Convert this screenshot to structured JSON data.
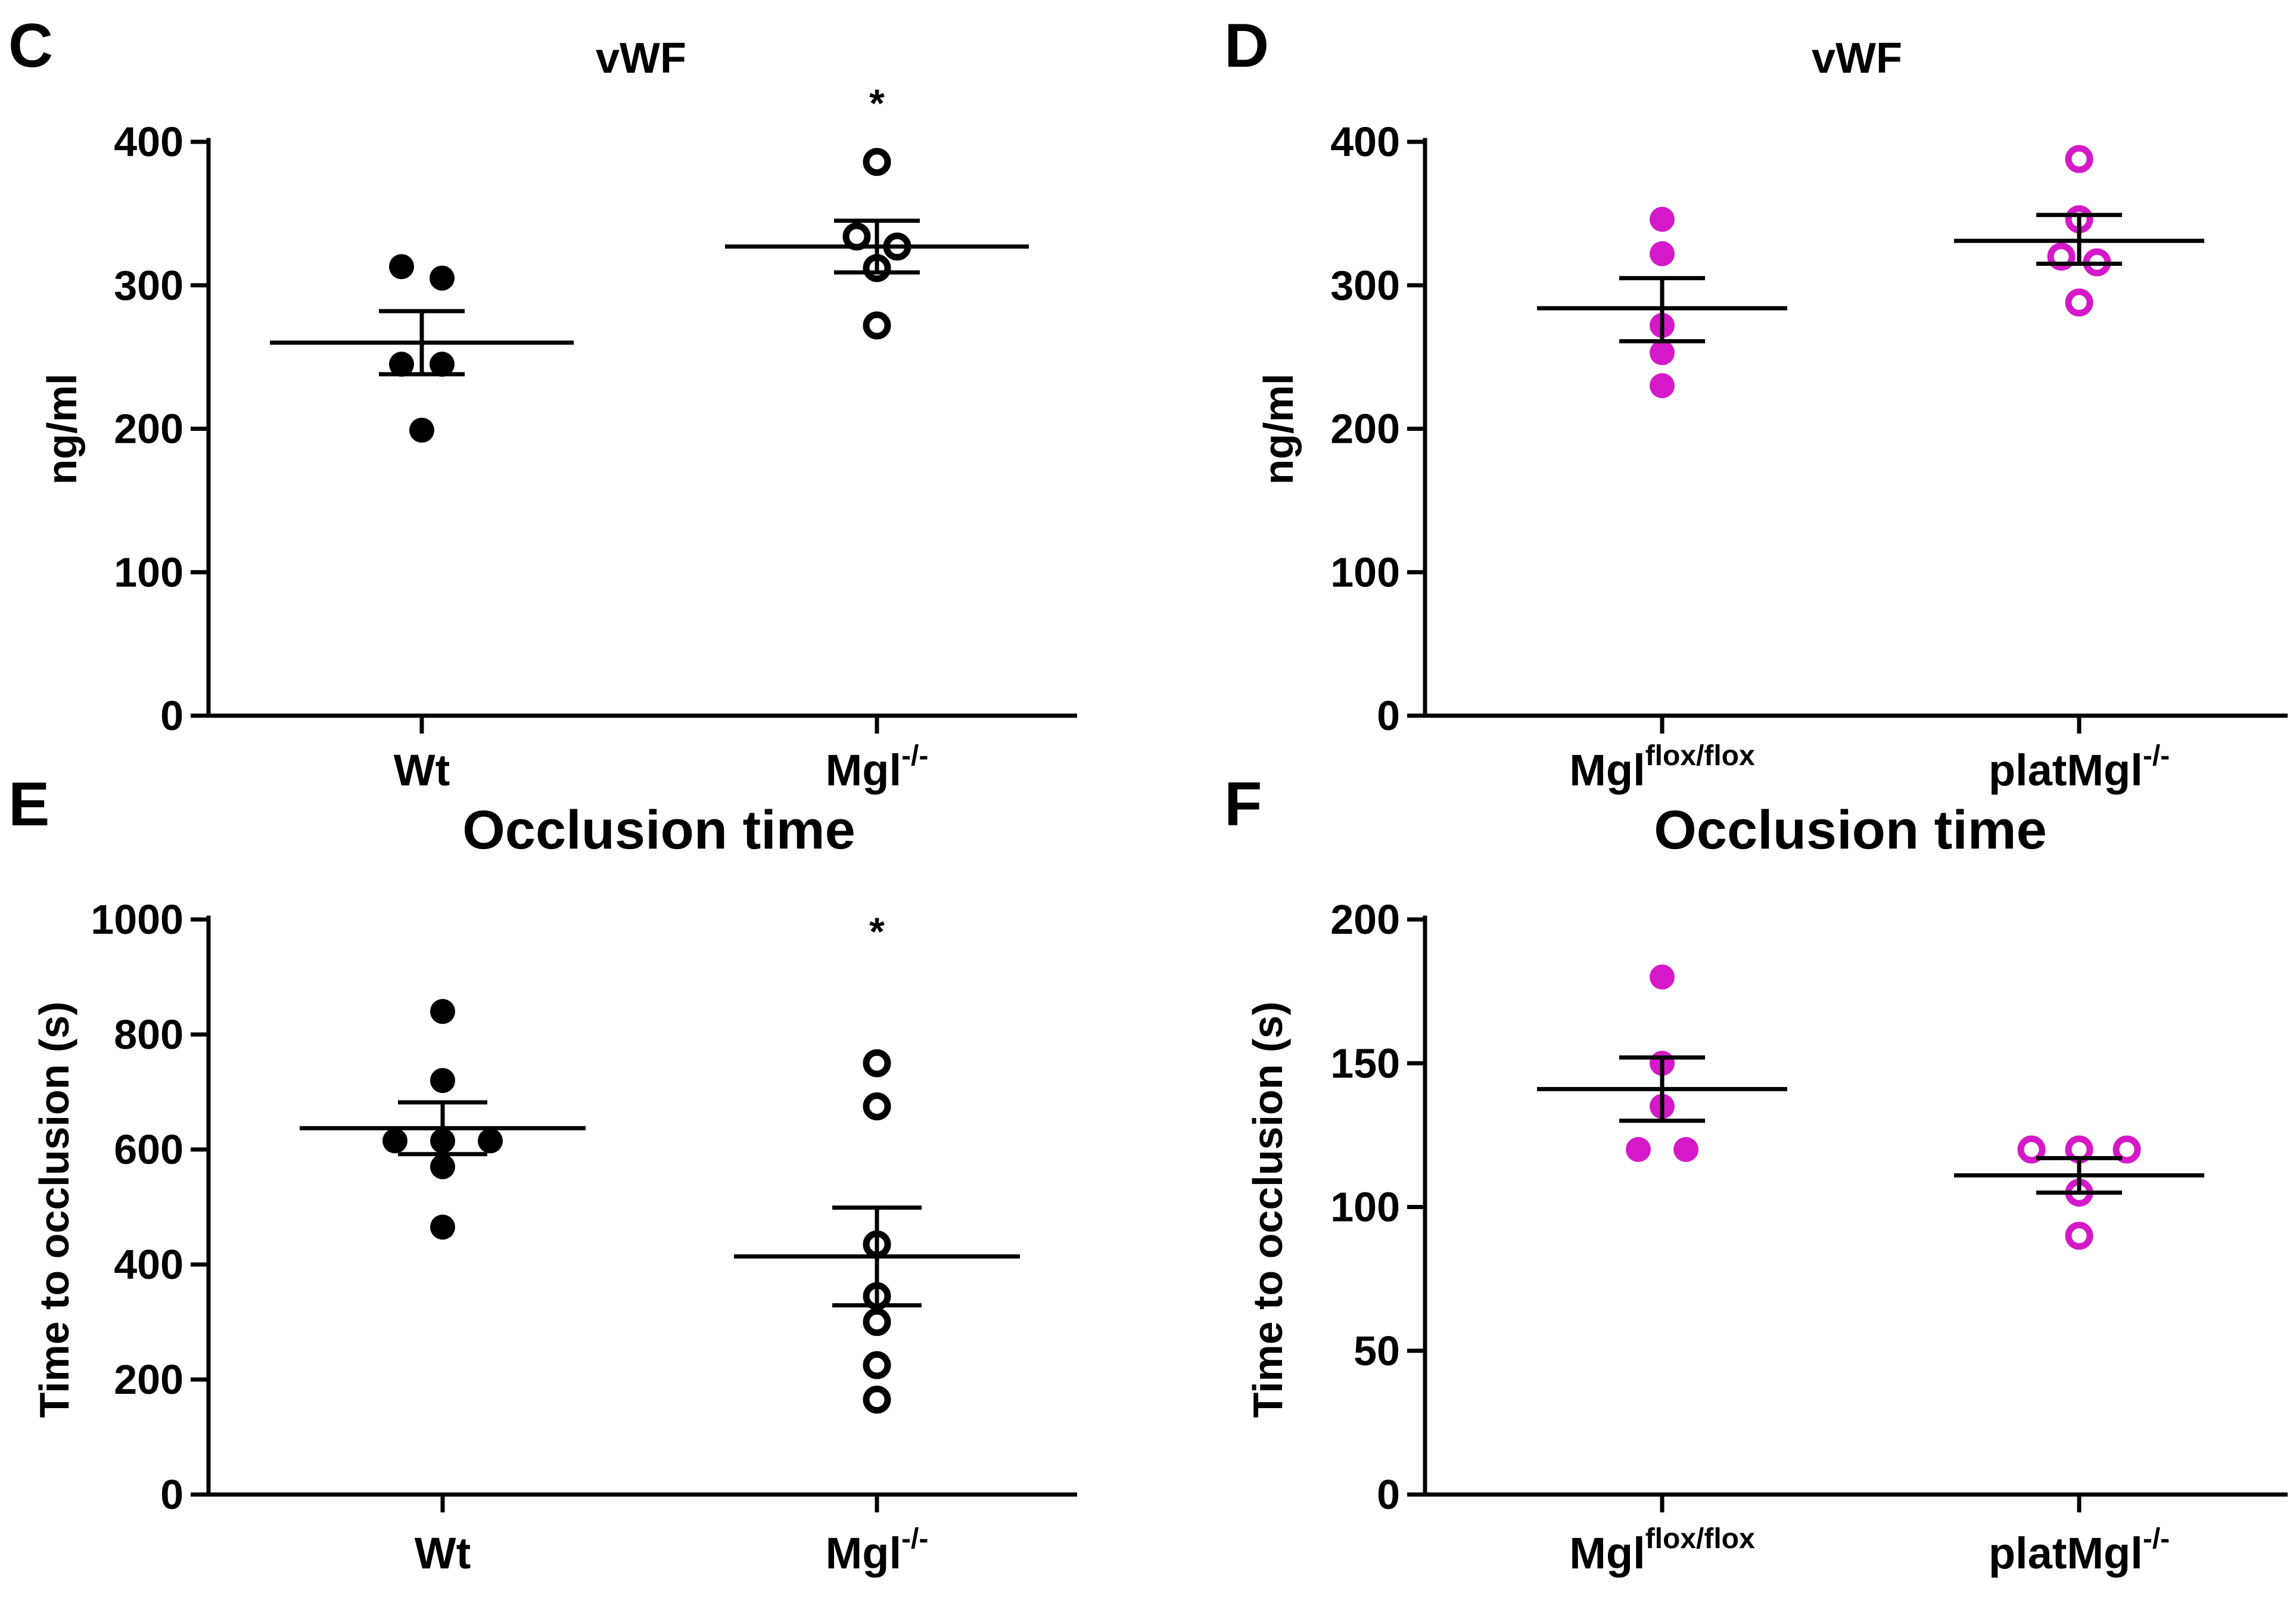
{
  "chart_data": [
    {
      "panel": "C",
      "type": "scatter",
      "title": "vWF",
      "ylabel": "ng/ml",
      "ylim": [
        0,
        400
      ],
      "yticks": [
        "0",
        "100",
        "200",
        "300",
        "400"
      ],
      "color": "#000000",
      "groups": [
        {
          "label": "Wt",
          "sup": "",
          "filled": true,
          "values": [
            313,
            305,
            245,
            245,
            199
          ],
          "mean": 260,
          "sem_upper": 282,
          "sem_lower": 238,
          "significance": ""
        },
        {
          "label": "Mgl",
          "sup": "-/-",
          "filled": false,
          "values": [
            386,
            334,
            327,
            312,
            272
          ],
          "mean": 327,
          "sem_upper": 345,
          "sem_lower": 309,
          "significance": "*"
        }
      ]
    },
    {
      "panel": "D",
      "type": "scatter",
      "title": "vWF",
      "ylabel": "ng/ml",
      "ylim": [
        0,
        400
      ],
      "yticks": [
        "0",
        "100",
        "200",
        "300",
        "400"
      ],
      "color": "#d519c8",
      "groups": [
        {
          "label": "Mgl",
          "sup": "flox/flox",
          "filled": true,
          "values": [
            346,
            322,
            272,
            253,
            230
          ],
          "mean": 284,
          "sem_upper": 305,
          "sem_lower": 261,
          "significance": ""
        },
        {
          "label": "platMgl",
          "sup": "-/-",
          "filled": false,
          "values": [
            388,
            346,
            320,
            316,
            288
          ],
          "mean": 331,
          "sem_upper": 349,
          "sem_lower": 315,
          "significance": ""
        }
      ]
    },
    {
      "panel": "E",
      "type": "scatter",
      "title": "Occlusion time",
      "ylabel": "Time to occlusion (s)",
      "ylim": [
        0,
        1000
      ],
      "yticks": [
        "0",
        "200",
        "400",
        "600",
        "800",
        "1000"
      ],
      "color": "#000000",
      "groups": [
        {
          "label": "Wt",
          "sup": "",
          "filled": true,
          "values": [
            840,
            720,
            615,
            615,
            615,
            570,
            465
          ],
          "mean": 637,
          "sem_upper": 682,
          "sem_lower": 592,
          "significance": ""
        },
        {
          "label": "Mgl",
          "sup": "-/-",
          "filled": false,
          "values": [
            750,
            675,
            435,
            345,
            300,
            225,
            165
          ],
          "mean": 414,
          "sem_upper": 499,
          "sem_lower": 329,
          "significance": "*"
        }
      ]
    },
    {
      "panel": "F",
      "type": "scatter",
      "title": "Occlusion time",
      "ylabel": "Time to occlusion (s)",
      "ylim": [
        0,
        200
      ],
      "yticks": [
        "0",
        "50",
        "100",
        "150",
        "200"
      ],
      "color": "#d519c8",
      "groups": [
        {
          "label": "Mgl",
          "sup": "flox/flox",
          "filled": true,
          "values": [
            180,
            150,
            135,
            120,
            120
          ],
          "mean": 141,
          "sem_upper": 152,
          "sem_lower": 130,
          "significance": ""
        },
        {
          "label": "platMgl",
          "sup": "-/-",
          "filled": false,
          "values": [
            120,
            120,
            120,
            105,
            90
          ],
          "mean": 111,
          "sem_upper": 117,
          "sem_lower": 105,
          "significance": ""
        }
      ]
    }
  ]
}
